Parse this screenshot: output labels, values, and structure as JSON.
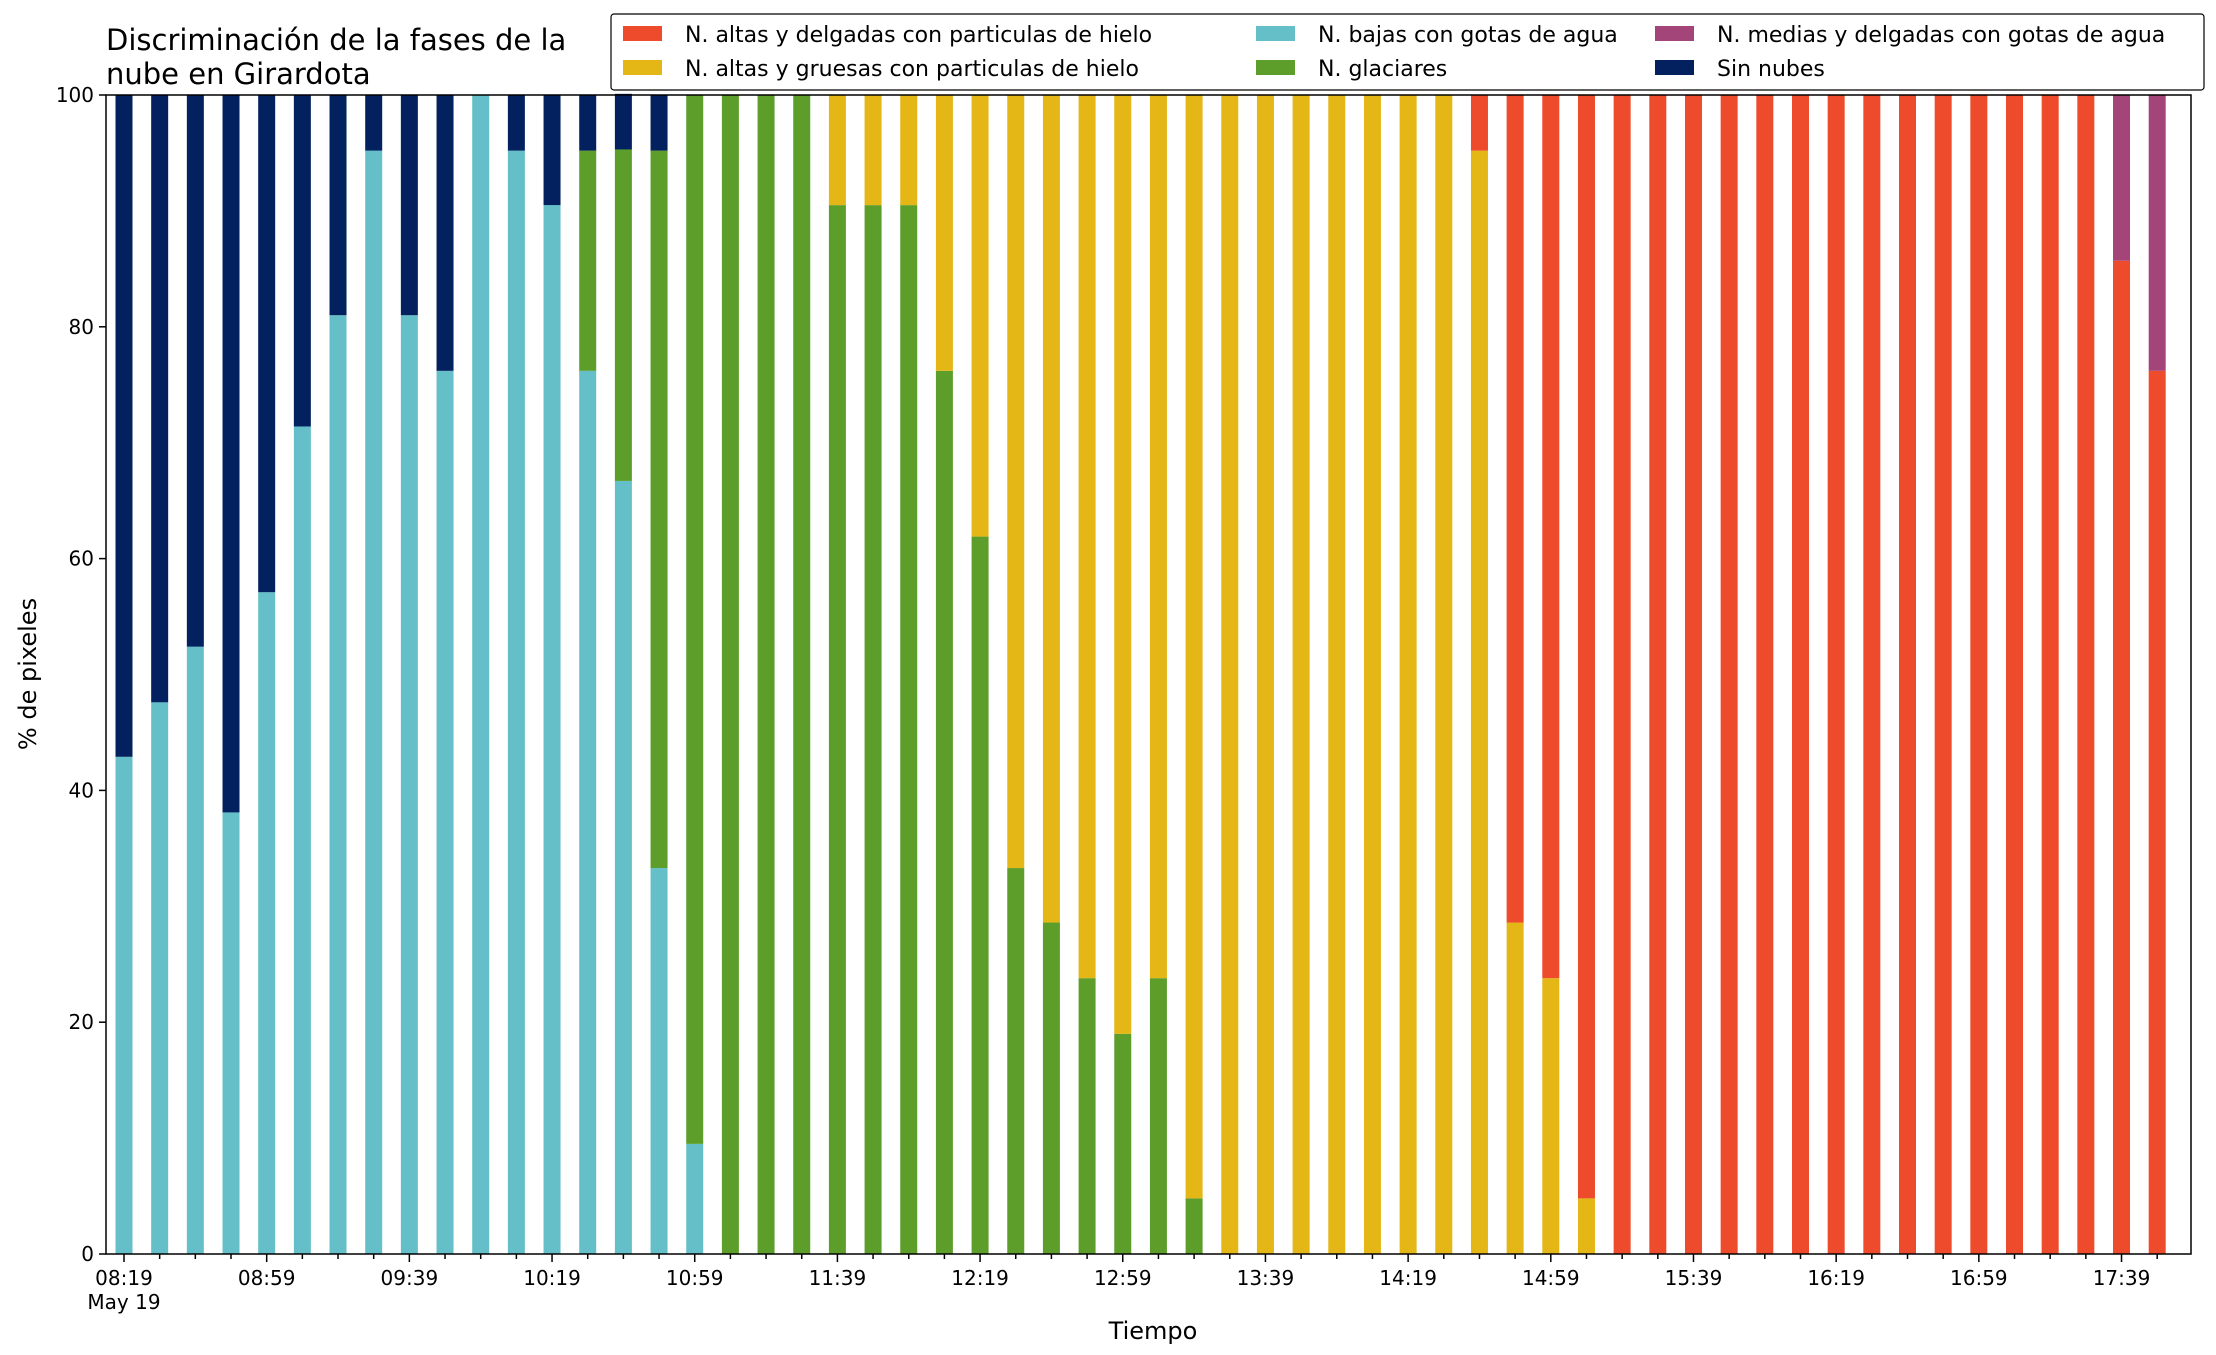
{
  "chart_data": {
    "type": "bar",
    "stacked": true,
    "title_lines": [
      "Discriminación de la fases de la",
      "nube en Girardota"
    ],
    "xlabel": "Tiempo",
    "ylabel": "% de pixeles",
    "ylim": [
      0,
      100
    ],
    "yticks": [
      0,
      20,
      40,
      60,
      80,
      100
    ],
    "grid": false,
    "legend_position": "top-right",
    "date_label": "May 19",
    "x_start_time": "08:19",
    "x_step_minutes": 10,
    "x_tick_labels": [
      "08:19",
      "08:59",
      "09:39",
      "10:19",
      "10:59",
      "11:39",
      "12:19",
      "12:59",
      "13:39",
      "14:19",
      "14:59",
      "15:39",
      "16:19",
      "16:59",
      "17:39"
    ],
    "x": [
      "08:19",
      "08:29",
      "08:39",
      "08:49",
      "08:59",
      "09:09",
      "09:19",
      "09:29",
      "09:39",
      "09:49",
      "09:59",
      "10:09",
      "10:19",
      "10:29",
      "10:39",
      "10:49",
      "10:59",
      "11:09",
      "11:19",
      "11:29",
      "11:39",
      "11:49",
      "11:59",
      "12:09",
      "12:19",
      "12:29",
      "12:39",
      "12:49",
      "12:59",
      "13:09",
      "13:19",
      "13:29",
      "13:39",
      "13:49",
      "13:59",
      "14:09",
      "14:19",
      "14:29",
      "14:39",
      "14:49",
      "14:59",
      "15:09",
      "15:19",
      "15:29",
      "15:39",
      "15:49",
      "15:59",
      "16:09",
      "16:19",
      "16:29",
      "16:39",
      "16:49",
      "16:59",
      "17:09",
      "17:19",
      "17:29",
      "17:39",
      "17:49"
    ],
    "series": [
      {
        "name": "N. altas y delgadas con particulas de hielo",
        "color": "#ee4a2c",
        "values": [
          0,
          0,
          0,
          0,
          0,
          0,
          0,
          0,
          0,
          0,
          0,
          0,
          0,
          0,
          0,
          0,
          0,
          0,
          0,
          0,
          0,
          0,
          0,
          0,
          0,
          0,
          0,
          0,
          0,
          0,
          0,
          0,
          0,
          0,
          0,
          0,
          0,
          0,
          4.8,
          71.4,
          76.2,
          95.2,
          100,
          100,
          100,
          100,
          100,
          100,
          100,
          100,
          100,
          100,
          100,
          100,
          100,
          100,
          85.7,
          76.2
        ]
      },
      {
        "name": "N. altas y gruesas con particulas de hielo",
        "color": "#e4b717",
        "values": [
          0,
          0,
          0,
          0,
          0,
          0,
          0,
          0,
          0,
          0,
          0,
          0,
          0,
          0,
          0,
          0,
          0,
          0,
          0,
          0,
          9.5,
          9.5,
          9.5,
          23.8,
          38.1,
          66.7,
          71.4,
          76.2,
          81.0,
          76.2,
          95.2,
          100,
          100,
          100,
          100,
          100,
          100,
          100,
          95.2,
          28.6,
          23.8,
          4.8,
          0,
          0,
          0,
          0,
          0,
          0,
          0,
          0,
          0,
          0,
          0,
          0,
          0,
          0,
          0,
          0
        ]
      },
      {
        "name": "N. bajas con gotas de agua",
        "color": "#65bfc9",
        "values": [
          42.9,
          47.6,
          52.4,
          38.1,
          57.1,
          71.4,
          81.0,
          95.2,
          81.0,
          76.2,
          100,
          95.2,
          90.5,
          76.2,
          66.7,
          33.3,
          9.5,
          0,
          0,
          0,
          0,
          0,
          0,
          0,
          0,
          0,
          0,
          0,
          0,
          0,
          0,
          0,
          0,
          0,
          0,
          0,
          0,
          0,
          0,
          0,
          0,
          0,
          0,
          0,
          0,
          0,
          0,
          0,
          0,
          0,
          0,
          0,
          0,
          0,
          0,
          0,
          0,
          0
        ]
      },
      {
        "name": "N. glaciares",
        "color": "#5d9e2b",
        "values": [
          0,
          0,
          0,
          0,
          0,
          0,
          0,
          0,
          0,
          0,
          0,
          0,
          0,
          19.0,
          28.6,
          61.9,
          90.5,
          100,
          100,
          100,
          90.5,
          90.5,
          90.5,
          76.2,
          61.9,
          33.3,
          28.6,
          23.8,
          19.0,
          23.8,
          4.8,
          0,
          0,
          0,
          0,
          0,
          0,
          0,
          0,
          0,
          0,
          0,
          0,
          0,
          0,
          0,
          0,
          0,
          0,
          0,
          0,
          0,
          0,
          0,
          0,
          0,
          0,
          0
        ]
      },
      {
        "name": "N. medias y delgadas con gotas de agua",
        "color": "#a4457a",
        "values": [
          0,
          0,
          0,
          0,
          0,
          0,
          0,
          0,
          0,
          0,
          0,
          0,
          0,
          0,
          0,
          0,
          0,
          0,
          0,
          0,
          0,
          0,
          0,
          0,
          0,
          0,
          0,
          0,
          0,
          0,
          0,
          0,
          0,
          0,
          0,
          0,
          0,
          0,
          0,
          0,
          0,
          0,
          0,
          0,
          0,
          0,
          0,
          0,
          0,
          0,
          0,
          0,
          0,
          0,
          0,
          0,
          14.3,
          23.8
        ]
      },
      {
        "name": "Sin nubes",
        "color": "#03215f",
        "values": [
          57.1,
          52.4,
          47.6,
          61.9,
          42.9,
          28.6,
          19.0,
          4.8,
          19.0,
          23.8,
          0,
          4.8,
          9.5,
          4.8,
          4.8,
          4.8,
          0,
          0,
          0,
          0,
          0,
          0,
          0,
          0,
          0,
          0,
          0,
          0,
          0,
          0,
          0,
          0,
          0,
          0,
          0,
          0,
          0,
          0,
          0,
          0,
          0,
          0,
          0,
          0,
          0,
          0,
          0,
          0,
          0,
          0,
          0,
          0,
          0,
          0,
          0,
          0,
          0,
          0
        ]
      }
    ],
    "stack_order": [
      "N. bajas con gotas de agua",
      "N. glaciares",
      "N. altas y gruesas con particulas de hielo",
      "N. altas y delgadas con particulas de hielo",
      "N. medias y delgadas con gotas de agua",
      "Sin nubes"
    ],
    "legend_layout": [
      [
        "N. altas y delgadas con particulas de hielo",
        "N. bajas con gotas de agua",
        "N. medias y delgadas con gotas de agua"
      ],
      [
        "N. altas y gruesas con particulas de hielo",
        "N. glaciares",
        "Sin nubes"
      ]
    ]
  }
}
